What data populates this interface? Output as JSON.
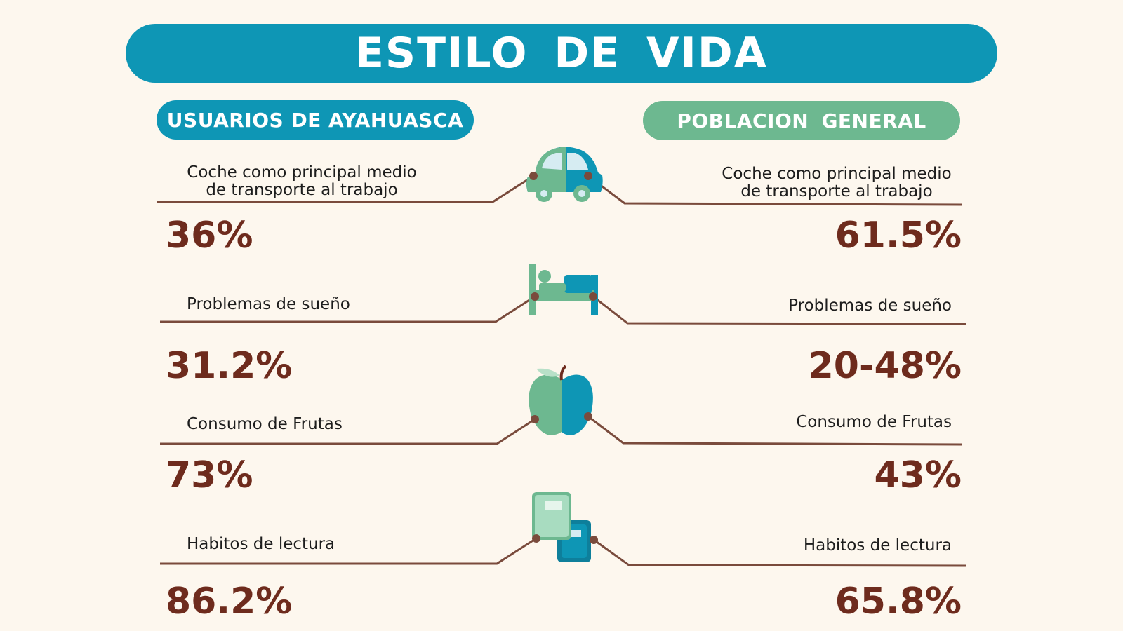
{
  "title": "ESTILO  DE  VIDA",
  "columns": {
    "left": "USUARIOS DE AYAHUASCA",
    "right": "POBLACION  GENERAL"
  },
  "colors": {
    "teal": "#0e96b5",
    "green": "#6db890",
    "brown": "#6e2b1d",
    "background": "#fdf7ee"
  },
  "rows": [
    {
      "icon": "car-icon",
      "left_label_line1": "Coche como principal medio",
      "left_label_line2": "de transporte al trabajo",
      "right_label_line1": "Coche como principal medio",
      "right_label_line2": "de transporte al trabajo",
      "left_value": "36%",
      "right_value": "61.5%"
    },
    {
      "icon": "bed-icon",
      "left_label_line1": "Problemas de sueño",
      "right_label_line1": "Problemas de sueño",
      "left_value": "31.2%",
      "right_value": "20-48%"
    },
    {
      "icon": "apple-icon",
      "left_label_line1": "Consumo de Frutas",
      "right_label_line1": "Consumo de Frutas",
      "left_value": "73%",
      "right_value": "43%"
    },
    {
      "icon": "books-icon",
      "left_label_line1": "Habitos de lectura",
      "right_label_line1": "Habitos de lectura",
      "left_value": "86.2%",
      "right_value": "65.8%"
    }
  ]
}
